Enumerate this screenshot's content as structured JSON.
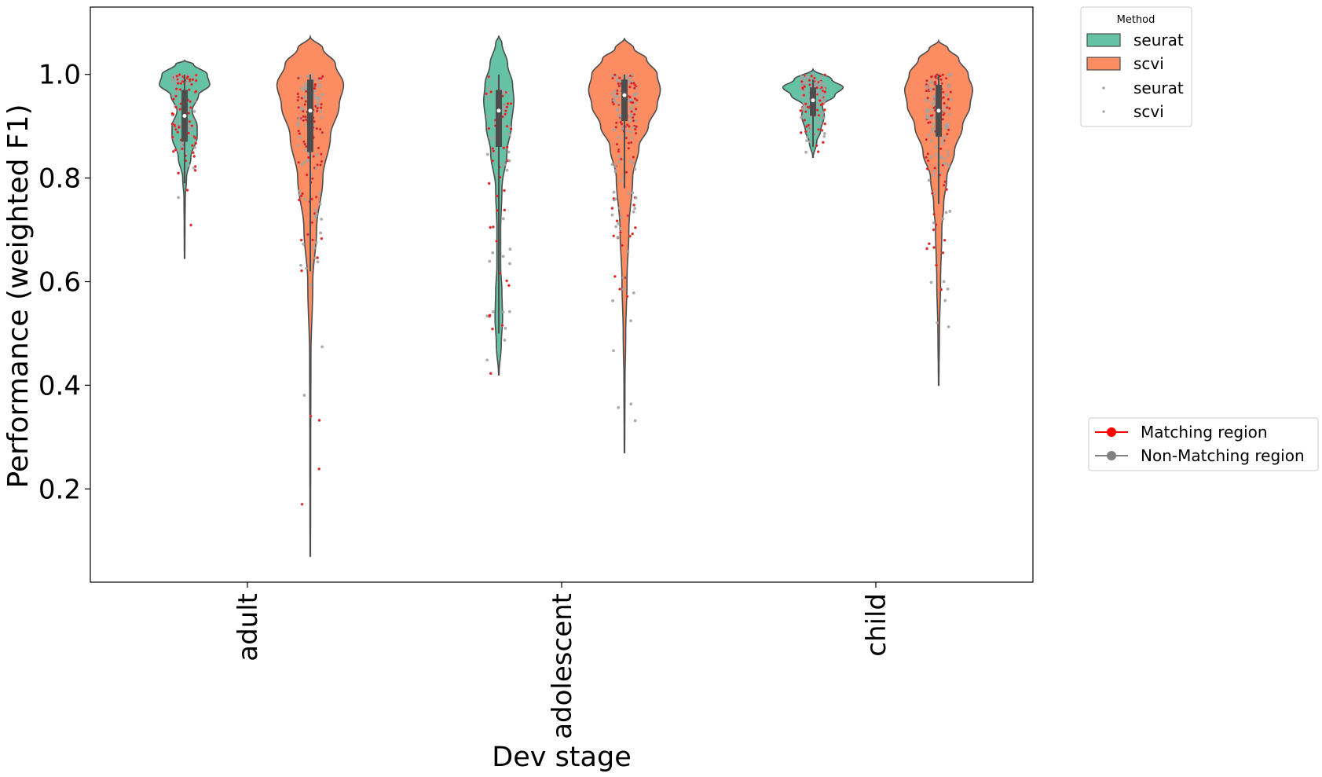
{
  "chart_data": {
    "type": "violin",
    "xlabel": "Dev stage",
    "ylabel": "Performance (weighted F1)",
    "ylim": [
      0.02,
      1.13
    ],
    "yticks": [
      "0.2",
      "0.4",
      "0.6",
      "0.8",
      "1.0"
    ],
    "categories": [
      "adult",
      "adolescent",
      "child"
    ],
    "legend_method": {
      "title": "Method",
      "entries": [
        "seurat",
        "scvi",
        "seurat",
        "scvi"
      ]
    },
    "legend_region": {
      "entries": [
        "Matching region",
        "Non-Matching region"
      ]
    },
    "colors": {
      "seurat": "#66c2a5",
      "scvi": "#fc8d62",
      "matching": "#ff0000",
      "non_matching": "#808080",
      "outline": "#4d4d4d"
    },
    "series": [
      {
        "name": "seurat",
        "violins": [
          {
            "category": "adult",
            "profile": [
              [
                0.645,
                0.004
              ],
              [
                0.7,
                0.006
              ],
              [
                0.76,
                0.01
              ],
              [
                0.8,
                0.03
              ],
              [
                0.84,
                0.1
              ],
              [
                0.88,
                0.2
              ],
              [
                0.9,
                0.2
              ],
              [
                0.93,
                0.12
              ],
              [
                0.96,
                0.22
              ],
              [
                0.98,
                0.4
              ],
              [
                1.0,
                0.36
              ],
              [
                1.02,
                0.14
              ],
              [
                1.027,
                0.0
              ]
            ],
            "q1": 0.87,
            "median": 0.92,
            "q3": 0.97,
            "whisker_low": 0.79,
            "whisker_high": 1.0
          },
          {
            "category": "adolescent",
            "profile": [
              [
                0.42,
                0.004
              ],
              [
                0.48,
                0.04
              ],
              [
                0.53,
                0.06
              ],
              [
                0.58,
                0.05
              ],
              [
                0.63,
                0.03
              ],
              [
                0.7,
                0.03
              ],
              [
                0.78,
                0.05
              ],
              [
                0.85,
                0.13
              ],
              [
                0.9,
                0.2
              ],
              [
                0.95,
                0.24
              ],
              [
                0.98,
                0.22
              ],
              [
                1.02,
                0.14
              ],
              [
                1.06,
                0.05
              ],
              [
                1.075,
                0.0
              ]
            ],
            "q1": 0.86,
            "median": 0.93,
            "q3": 0.97,
            "whisker_low": 0.5,
            "whisker_high": 1.0
          },
          {
            "category": "child",
            "profile": [
              [
                0.84,
                0.004
              ],
              [
                0.87,
                0.06
              ],
              [
                0.89,
                0.12
              ],
              [
                0.92,
                0.18
              ],
              [
                0.94,
                0.15
              ],
              [
                0.96,
                0.35
              ],
              [
                0.975,
                0.48
              ],
              [
                0.99,
                0.3
              ],
              [
                1.01,
                0.0
              ]
            ],
            "q1": 0.92,
            "median": 0.95,
            "q3": 0.975,
            "whisker_low": 0.86,
            "whisker_high": 0.99
          }
        ]
      },
      {
        "name": "scvi",
        "violins": [
          {
            "category": "adult",
            "profile": [
              [
                0.07,
                0.004
              ],
              [
                0.25,
                0.006
              ],
              [
                0.45,
                0.01
              ],
              [
                0.6,
                0.04
              ],
              [
                0.7,
                0.1
              ],
              [
                0.8,
                0.2
              ],
              [
                0.88,
                0.32
              ],
              [
                0.94,
                0.46
              ],
              [
                0.98,
                0.53
              ],
              [
                1.02,
                0.4
              ],
              [
                1.05,
                0.2
              ],
              [
                1.073,
                0.0
              ]
            ],
            "q1": 0.85,
            "median": 0.93,
            "q3": 0.99,
            "whisker_low": 0.62,
            "whisker_high": 1.0
          },
          {
            "category": "adolescent",
            "profile": [
              [
                0.27,
                0.004
              ],
              [
                0.4,
                0.008
              ],
              [
                0.5,
                0.02
              ],
              [
                0.6,
                0.04
              ],
              [
                0.7,
                0.07
              ],
              [
                0.8,
                0.13
              ],
              [
                0.86,
                0.23
              ],
              [
                0.9,
                0.38
              ],
              [
                0.94,
                0.52
              ],
              [
                0.97,
                0.57
              ],
              [
                1.0,
                0.52
              ],
              [
                1.03,
                0.35
              ],
              [
                1.05,
                0.15
              ],
              [
                1.07,
                0.0
              ]
            ],
            "q1": 0.91,
            "median": 0.96,
            "q3": 0.99,
            "whisker_low": 0.78,
            "whisker_high": 1.0
          },
          {
            "category": "child",
            "profile": [
              [
                0.4,
                0.004
              ],
              [
                0.5,
                0.012
              ],
              [
                0.6,
                0.03
              ],
              [
                0.7,
                0.05
              ],
              [
                0.75,
                0.08
              ],
              [
                0.8,
                0.13
              ],
              [
                0.85,
                0.25
              ],
              [
                0.9,
                0.38
              ],
              [
                0.94,
                0.5
              ],
              [
                0.97,
                0.54
              ],
              [
                1.0,
                0.47
              ],
              [
                1.03,
                0.32
              ],
              [
                1.05,
                0.15
              ],
              [
                1.065,
                0.0
              ]
            ],
            "q1": 0.88,
            "median": 0.93,
            "q3": 0.98,
            "whisker_low": 0.75,
            "whisker_high": 1.0
          }
        ]
      }
    ]
  }
}
